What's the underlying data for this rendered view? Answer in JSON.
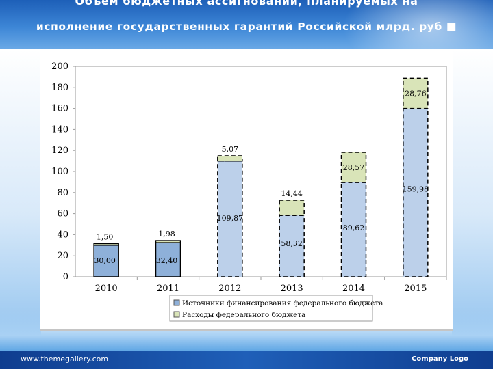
{
  "slide": {
    "title_line1": "Объем бюджетных ассигнований, планируемых на",
    "title_line2": "исполнение государственных гарантий Российской млрд. руб",
    "title_bullet": "■",
    "footer_url": "www.themegallery.com",
    "footer_logo": "Company Logo"
  },
  "chart_data": {
    "type": "bar",
    "stacked": true,
    "categories": [
      "2010",
      "2011",
      "2012",
      "2013",
      "2014",
      "2015"
    ],
    "series": [
      {
        "name": "Источники финансирования федерального бюджета",
        "values": [
          30.0,
          32.4,
          109.87,
          58.32,
          89.62,
          159.98
        ],
        "labels": [
          "30,00",
          "32,40",
          "109,87",
          "58,32",
          "89,62",
          "159,98"
        ],
        "color_solid": "#8eb0d9",
        "color_dashed": "#bcd0ea"
      },
      {
        "name": "Расходы федерального бюджета",
        "values": [
          1.5,
          1.98,
          5.07,
          14.44,
          28.57,
          28.76
        ],
        "labels": [
          "1,50",
          "1,98",
          "5,07",
          "14,44",
          "28,57",
          "28,76"
        ],
        "color": "#d9e4b8"
      }
    ],
    "solid_categories": [
      "2010",
      "2011"
    ],
    "dashed_categories": [
      "2012",
      "2013",
      "2014",
      "2015"
    ],
    "yticks": [
      "0",
      "20",
      "40",
      "60",
      "80",
      "100",
      "120",
      "140",
      "160",
      "180",
      "200"
    ],
    "ylim": [
      0,
      200
    ],
    "grid": false,
    "legend_position": "bottom"
  }
}
